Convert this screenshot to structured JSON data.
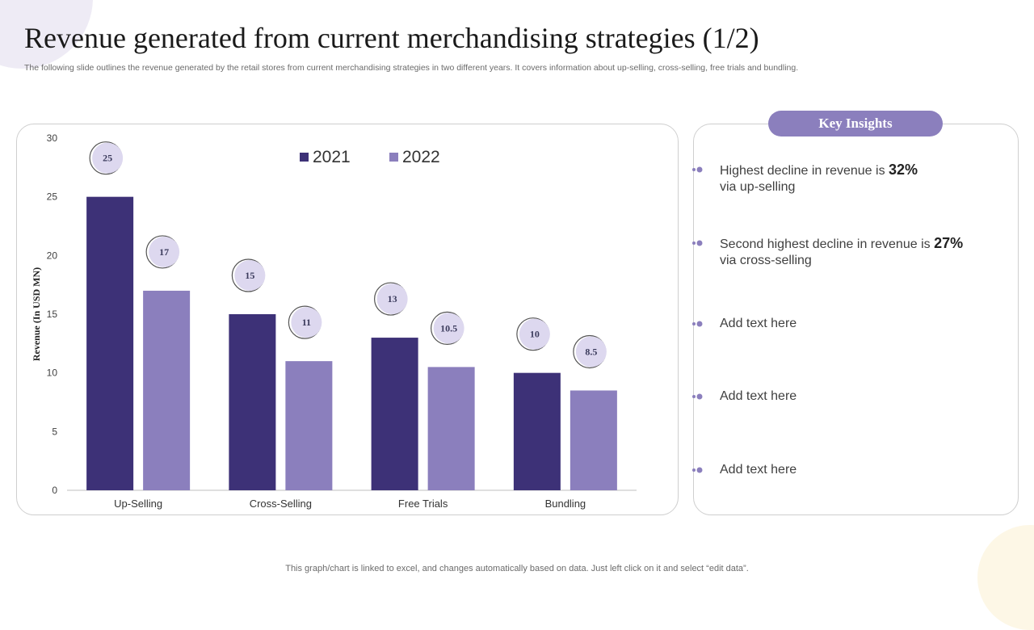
{
  "title": "Revenue generated from current merchandising strategies (1/2)",
  "subtitle": "The following slide outlines the revenue generated by the retail stores from current merchandising strategies in two different years. It covers information about up-selling, cross-selling, free trials and bundling.",
  "colors": {
    "series_2021": "#3d3177",
    "series_2022": "#8b7fbd",
    "badge_fill": "#ddd8ef",
    "pill": "#8b7fbd"
  },
  "chart_data": {
    "type": "bar",
    "categories": [
      "Up-Selling",
      "Cross-Selling",
      "Free Trials",
      "Bundling"
    ],
    "series": [
      {
        "name": "2021",
        "values": [
          25,
          15,
          13,
          10
        ]
      },
      {
        "name": "2022",
        "values": [
          17,
          11,
          10.5,
          8.5
        ]
      }
    ],
    "data_labels": [
      [
        "25",
        "15",
        "13",
        "10"
      ],
      [
        "17",
        "11",
        "10.5",
        "8.5"
      ]
    ],
    "ylabel": "Revenue (In USD MN)",
    "xlabel": "",
    "ylim": [
      0,
      30
    ],
    "yticks": [
      0,
      5,
      10,
      15,
      20,
      25,
      30
    ],
    "legend_position": "top-center",
    "grid": false
  },
  "insights": {
    "header": "Key Insights",
    "items": [
      {
        "before": "Highest decline in revenue is ",
        "bold": "32%",
        "after": "via up-selling"
      },
      {
        "before": "Second highest decline in revenue is ",
        "bold": "27%",
        "after": "via cross-selling"
      },
      {
        "before": "Add text here",
        "bold": "",
        "after": ""
      },
      {
        "before": "Add text here",
        "bold": "",
        "after": ""
      },
      {
        "before": "Add text here",
        "bold": "",
        "after": ""
      }
    ]
  },
  "footer": "This graph/chart is linked to excel, and changes automatically based on data. Just left click on it and select “edit data”."
}
